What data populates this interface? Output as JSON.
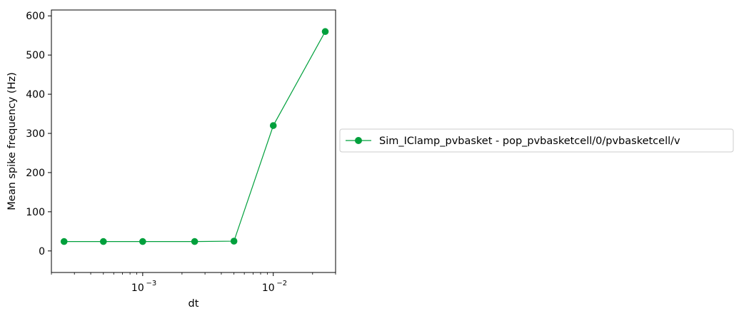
{
  "chart_data": {
    "type": "line",
    "x": [
      0.00025,
      0.0005,
      0.001,
      0.0025,
      0.005,
      0.01,
      0.025
    ],
    "series": [
      {
        "name": "Sim_IClamp_pvbasket - pop_pvbasketcell/0/pvbasketcell/v",
        "values": [
          24,
          24,
          24,
          24,
          25,
          320,
          560
        ],
        "color": "#00a03c",
        "marker": "circle"
      }
    ],
    "xlabel": "dt",
    "ylabel": "Mean spike frequency (Hz)",
    "xscale": "log",
    "xlim": [
      0.0002,
      0.03
    ],
    "ylim": [
      -55,
      615
    ],
    "x_ticks": [
      {
        "base": "10",
        "exp": "−3",
        "value": 0.001
      },
      {
        "base": "10",
        "exp": "−2",
        "value": 0.01
      }
    ],
    "y_ticks": [
      0,
      100,
      200,
      300,
      400,
      500,
      600
    ],
    "grid": false,
    "legend_position": "outside-right"
  }
}
